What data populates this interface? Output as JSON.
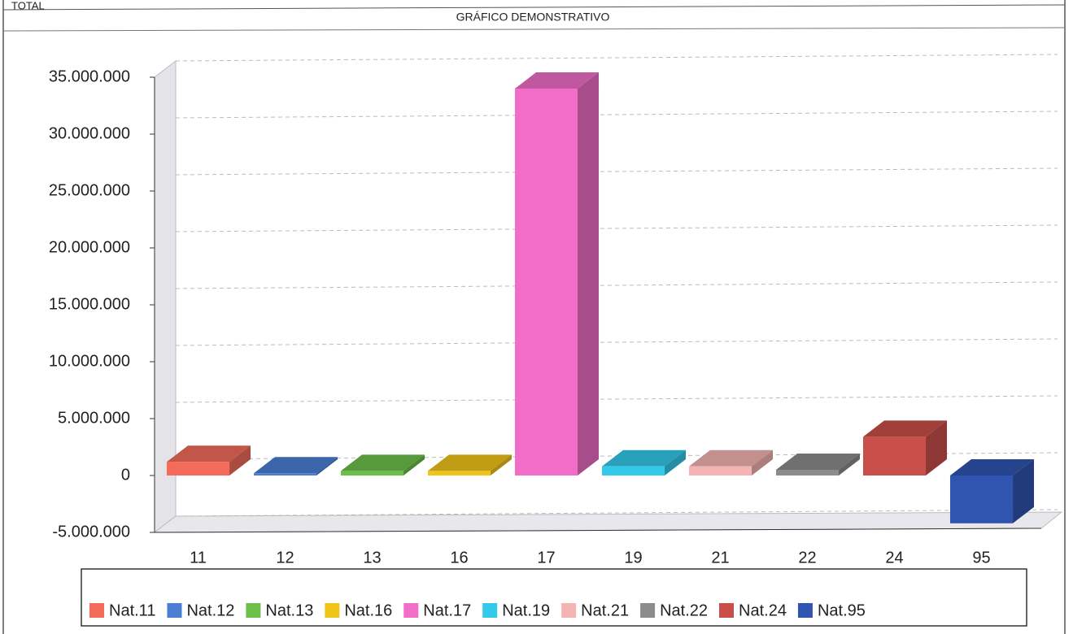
{
  "header": {
    "label": "TOTAL"
  },
  "chart_data": {
    "type": "bar3d",
    "title": "GRÁFICO DEMONSTRATIVO",
    "categories": [
      "11",
      "12",
      "13",
      "16",
      "17",
      "19",
      "21",
      "22",
      "24",
      "95"
    ],
    "values": [
      1200000,
      200000,
      400000,
      400000,
      34000000,
      800000,
      800000,
      500000,
      3400000,
      -4200000
    ],
    "colors": [
      "#f26b5b",
      "#4a7fd4",
      "#6cc04a",
      "#f0c419",
      "#f06ec8",
      "#33c9e8",
      "#f4b4b4",
      "#8c8c8c",
      "#c9504a",
      "#2f55b0"
    ],
    "legend": [
      "Nat.11",
      "Nat.12",
      "Nat.13",
      "Nat.16",
      "Nat.17",
      "Nat.19",
      "Nat.21",
      "Nat.22",
      "Nat.24",
      "Nat.95"
    ],
    "ylim": [
      -5000000,
      35000000
    ],
    "yticks": [
      {
        "value": -5000000,
        "label": "-5.000.000"
      },
      0,
      {
        "value": 5000000,
        "label": "5.000.000"
      },
      {
        "value": 10000000,
        "label": "10.000.000"
      },
      {
        "value": 15000000,
        "label": "15.000.000"
      },
      {
        "value": 20000000,
        "label": "20.000.000"
      },
      {
        "value": 25000000,
        "label": "25.000.000"
      },
      {
        "value": 30000000,
        "label": "30.000.000"
      },
      {
        "value": 35000000,
        "label": "35.000.000"
      }
    ],
    "grid": true
  }
}
